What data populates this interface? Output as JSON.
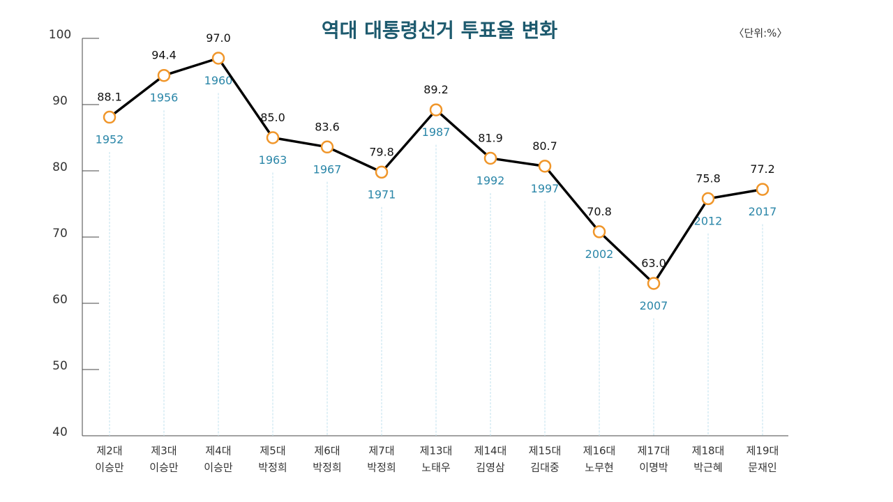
{
  "chart_data": {
    "type": "line",
    "title": "역대 대통령선거 투표율 변화",
    "unit_note": "〈단위:%〉",
    "categories": [
      "제2대",
      "제3대",
      "제4대",
      "제5대",
      "제6대",
      "제7대",
      "제13대",
      "제14대",
      "제15대",
      "제16대",
      "제17대",
      "제18대",
      "제19대"
    ],
    "candidates": [
      "이승만",
      "이승만",
      "이승만",
      "박정희",
      "박정희",
      "박정희",
      "노태우",
      "김영삼",
      "김대중",
      "노무현",
      "이명박",
      "박근혜",
      "문재인"
    ],
    "years": [
      1952,
      1956,
      1960,
      1963,
      1967,
      1971,
      1987,
      1992,
      1997,
      2002,
      2007,
      2012,
      2017
    ],
    "values": [
      88.1,
      94.4,
      97,
      85,
      83.6,
      79.8,
      89.2,
      81.9,
      80.7,
      70.8,
      63,
      75.8,
      77.2
    ],
    "value_labels": [
      "88.1",
      "94.4",
      "97.0",
      "85.0",
      "83.6",
      "79.8",
      "89.2",
      "81.9",
      "80.7",
      "70.8",
      "63.0",
      "75.8",
      "77.2"
    ],
    "color": "#000000",
    "marker_color": "#f0962a",
    "year_color": "#2a86a8",
    "ylim": [
      40,
      100
    ],
    "yticks": [
      40,
      50,
      60,
      70,
      80,
      90,
      100
    ]
  }
}
